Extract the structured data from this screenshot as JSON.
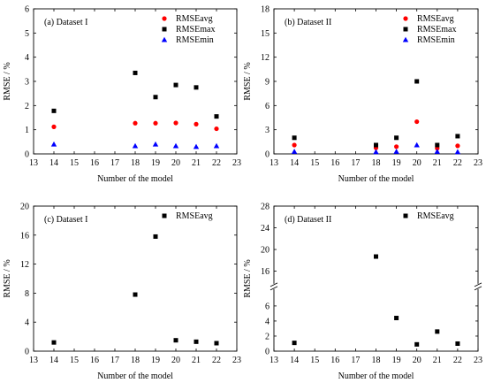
{
  "chart_data": [
    {
      "panel_label": "(a)",
      "title": "Dataset I",
      "type": "scatter",
      "xlabel": "Number of the model",
      "ylabel": "RMSE / %",
      "xlim": [
        13,
        23
      ],
      "ylim": [
        0,
        6
      ],
      "xticks": [
        "13",
        "14",
        "15",
        "16",
        "17",
        "18",
        "19",
        "20",
        "21",
        "22",
        "23"
      ],
      "yticks": [
        "0",
        "1",
        "2",
        "3",
        "4",
        "5",
        "6"
      ],
      "legend_position": "top-right",
      "series": [
        {
          "name": "RMSEavg",
          "color": "#ff0000",
          "marker": "circle",
          "x": [
            14,
            18,
            19,
            20,
            21,
            22
          ],
          "values": [
            1.12,
            1.27,
            1.27,
            1.28,
            1.23,
            1.04
          ]
        },
        {
          "name": "RMSEmax",
          "color": "#000000",
          "marker": "square",
          "x": [
            14,
            18,
            19,
            20,
            21,
            22
          ],
          "values": [
            1.78,
            3.35,
            2.35,
            2.85,
            2.75,
            1.55
          ]
        },
        {
          "name": "RMSEmin",
          "color": "#0000ff",
          "marker": "triangle",
          "x": [
            14,
            18,
            19,
            20,
            21,
            22
          ],
          "values": [
            0.4,
            0.33,
            0.4,
            0.33,
            0.3,
            0.33
          ]
        }
      ]
    },
    {
      "panel_label": "(b)",
      "title": "Dataset II",
      "type": "scatter",
      "xlabel": "Number of the model",
      "ylabel": "RMSE / %",
      "xlim": [
        13,
        23
      ],
      "ylim": [
        0,
        18
      ],
      "xticks": [
        "13",
        "14",
        "15",
        "16",
        "17",
        "18",
        "19",
        "20",
        "21",
        "22",
        "23"
      ],
      "yticks": [
        "0",
        "3",
        "6",
        "9",
        "12",
        "15",
        "18"
      ],
      "legend_position": "top-right",
      "series": [
        {
          "name": "RMSEavg",
          "color": "#ff0000",
          "marker": "circle",
          "x": [
            14,
            18,
            19,
            20,
            21,
            22
          ],
          "values": [
            1.1,
            0.75,
            0.9,
            4.0,
            0.7,
            1.0
          ]
        },
        {
          "name": "RMSEmax",
          "color": "#000000",
          "marker": "square",
          "x": [
            14,
            18,
            19,
            20,
            21,
            22
          ],
          "values": [
            2.0,
            1.1,
            2.0,
            9.0,
            1.1,
            2.2
          ]
        },
        {
          "name": "RMSEmin",
          "color": "#0000ff",
          "marker": "triangle",
          "x": [
            14,
            18,
            19,
            20,
            21,
            22
          ],
          "values": [
            0.3,
            0.25,
            0.3,
            1.1,
            0.3,
            0.25
          ]
        }
      ]
    },
    {
      "panel_label": "(c)",
      "title": "Dataset I",
      "type": "scatter",
      "xlabel": "Number of the model",
      "ylabel": "RMSE / %",
      "xlim": [
        13,
        23
      ],
      "ylim": [
        0,
        20
      ],
      "xticks": [
        "13",
        "14",
        "15",
        "16",
        "17",
        "18",
        "19",
        "20",
        "21",
        "22",
        "23"
      ],
      "yticks": [
        "0",
        "4",
        "8",
        "12",
        "16",
        "20"
      ],
      "legend_position": "top-right",
      "series": [
        {
          "name": "RMSEavg",
          "color": "#000000",
          "marker": "square",
          "x": [
            14,
            18,
            19,
            20,
            21,
            22
          ],
          "values": [
            1.2,
            7.8,
            15.8,
            1.5,
            1.3,
            1.1
          ]
        }
      ]
    },
    {
      "panel_label": "(d)",
      "title": "Dataset II",
      "type": "scatter",
      "xlabel": "Number of the model",
      "ylabel": "RMSE / %",
      "xlim": [
        13,
        23
      ],
      "broken_y_axis": true,
      "ylim_lower": [
        0,
        8
      ],
      "ylim_upper": [
        14,
        28
      ],
      "yticks_lower": [
        "0",
        "2",
        "4",
        "6"
      ],
      "yticks_upper": [
        "16",
        "20",
        "24",
        "28"
      ],
      "xticks": [
        "13",
        "14",
        "15",
        "16",
        "17",
        "18",
        "19",
        "20",
        "21",
        "22",
        "23"
      ],
      "legend_position": "top-right",
      "series": [
        {
          "name": "RMSEavg",
          "color": "#000000",
          "marker": "square",
          "x": [
            14,
            18,
            19,
            20,
            21,
            22
          ],
          "values": [
            1.1,
            18.7,
            4.4,
            0.9,
            2.6,
            1.0
          ]
        }
      ]
    }
  ]
}
